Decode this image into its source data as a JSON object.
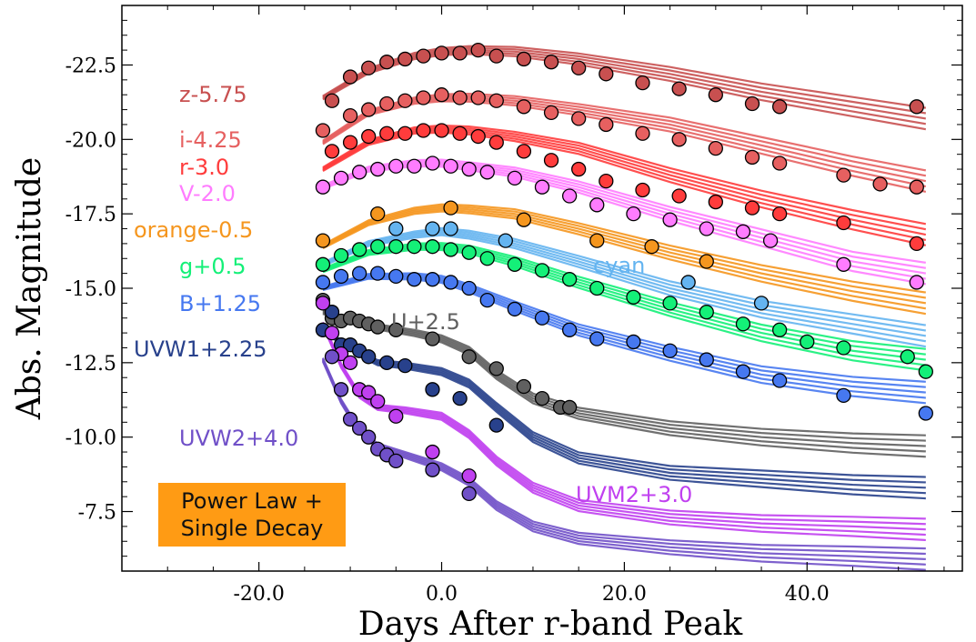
{
  "chart_data": {
    "type": "scatter",
    "xlabel": "Days After r-band Peak",
    "ylabel": "Abs. Magnitude",
    "xlim": [
      -35,
      57
    ],
    "ylim": [
      -5.5,
      -24.5
    ],
    "y_inverted": true,
    "x_ticks": [
      -20.0,
      0.0,
      20.0,
      40.0
    ],
    "x_tick_labels": [
      "-20.0",
      "0.0",
      "20.0",
      "40.0"
    ],
    "y_ticks": [
      -22.5,
      -20.0,
      -17.5,
      -15.0,
      -12.5,
      -10.0,
      -7.5
    ],
    "y_tick_labels": [
      "-22.5",
      "-20.0",
      "-17.5",
      "-15.0",
      "-12.5",
      "-10.0",
      "-7.5"
    ],
    "grid": false,
    "model_box": [
      "Power Law +",
      "Single Decay"
    ],
    "series": [
      {
        "name": "z-5.75",
        "color": "#c85050",
        "x": [
          -12,
          -10,
          -8,
          -6,
          -4,
          -2,
          0,
          2,
          4,
          6,
          9,
          12,
          15,
          18,
          22,
          26,
          30,
          34,
          37,
          52
        ],
        "y": [
          -21.3,
          -22.1,
          -22.4,
          -22.6,
          -22.7,
          -22.8,
          -22.9,
          -22.9,
          -23.0,
          -22.8,
          -22.7,
          -22.6,
          -22.4,
          -22.2,
          -21.9,
          -21.7,
          -21.5,
          -21.2,
          -21.1,
          -21.1
        ],
        "model_x": [
          -13,
          -8,
          -3,
          0,
          3,
          8,
          15,
          25,
          35,
          45,
          53
        ],
        "model_y": [
          -21.4,
          -22.3,
          -22.8,
          -22.95,
          -23.0,
          -22.95,
          -22.7,
          -22.2,
          -21.6,
          -21.1,
          -20.7
        ]
      },
      {
        "name": "i-4.25",
        "color": "#e66060",
        "x": [
          -13,
          -10,
          -8,
          -6,
          -4,
          -2,
          0,
          2,
          4,
          6,
          9,
          12,
          15,
          18,
          22,
          26,
          30,
          34,
          37,
          44,
          48,
          52
        ],
        "y": [
          -20.3,
          -20.8,
          -21.0,
          -21.2,
          -21.3,
          -21.4,
          -21.5,
          -21.4,
          -21.4,
          -21.3,
          -21.1,
          -20.9,
          -20.7,
          -20.5,
          -20.2,
          -20.0,
          -19.7,
          -19.4,
          -19.2,
          -18.8,
          -18.5,
          -18.4
        ],
        "model_x": [
          -13,
          -8,
          -3,
          0,
          3,
          8,
          15,
          25,
          35,
          45,
          53
        ],
        "model_y": [
          -19.9,
          -20.9,
          -21.3,
          -21.4,
          -21.4,
          -21.3,
          -21.0,
          -20.5,
          -19.8,
          -19.1,
          -18.6
        ]
      },
      {
        "name": "r-3.0",
        "color": "#ff3c3c",
        "x": [
          -12,
          -10,
          -8,
          -6,
          -4,
          -2,
          0,
          2,
          4,
          6,
          9,
          12,
          15,
          18,
          22,
          26,
          30,
          34,
          37,
          44,
          52
        ],
        "y": [
          -19.6,
          -19.9,
          -20.1,
          -20.2,
          -20.2,
          -20.3,
          -20.3,
          -20.2,
          -20.1,
          -19.9,
          -19.6,
          -19.3,
          -19.0,
          -18.6,
          -18.3,
          -18.1,
          -17.9,
          -17.7,
          -17.5,
          -17.2,
          -16.5
        ],
        "model_x": [
          -13,
          -8,
          -3,
          0,
          3,
          8,
          15,
          25,
          35,
          45,
          53
        ],
        "model_y": [
          -19.0,
          -19.9,
          -20.3,
          -20.35,
          -20.3,
          -20.1,
          -19.7,
          -18.8,
          -18.0,
          -17.3,
          -16.8
        ]
      },
      {
        "name": "V-2.0",
        "color": "#ff7cff",
        "x": [
          -13,
          -11,
          -9,
          -7,
          -5,
          -3,
          -1,
          1,
          3,
          5,
          8,
          11,
          14,
          17,
          21,
          25,
          29,
          33,
          36,
          44,
          52
        ],
        "y": [
          -18.4,
          -18.7,
          -18.9,
          -19.0,
          -19.1,
          -19.1,
          -19.2,
          -19.1,
          -19.0,
          -18.9,
          -18.7,
          -18.4,
          -18.1,
          -17.8,
          -17.5,
          -17.3,
          -17.0,
          -16.9,
          -16.6,
          -15.8,
          -15.2
        ],
        "model_x": [
          -13,
          -8,
          -3,
          0,
          3,
          8,
          15,
          25,
          35,
          45,
          53
        ],
        "model_y": [
          -18.4,
          -19.0,
          -19.2,
          -19.2,
          -19.1,
          -18.9,
          -18.4,
          -17.5,
          -16.7,
          -15.9,
          -15.5
        ]
      },
      {
        "name": "orange-0.5",
        "color": "#f5961e",
        "x": [
          -13,
          -7,
          1,
          9,
          17,
          23,
          29
        ],
        "y": [
          -16.6,
          -17.5,
          -17.7,
          -17.3,
          -16.6,
          -16.4,
          -15.9
        ],
        "model_x": [
          -13,
          -8,
          -3,
          0,
          3,
          8,
          15,
          25,
          35,
          45,
          53
        ],
        "model_y": [
          -16.4,
          -17.2,
          -17.6,
          -17.7,
          -17.65,
          -17.5,
          -17.0,
          -16.2,
          -15.5,
          -14.9,
          -14.5
        ]
      },
      {
        "name": "cyan",
        "color": "#64b4f0",
        "x": [
          -5,
          -1,
          1,
          7,
          27,
          35
        ],
        "y": [
          -17.0,
          -17.0,
          -17.0,
          -16.6,
          -15.2,
          -14.5
        ],
        "model_x": [
          -13,
          -8,
          -3,
          0,
          3,
          8,
          15,
          25,
          35,
          45,
          53
        ],
        "model_y": [
          -15.8,
          -16.5,
          -16.8,
          -16.9,
          -16.8,
          -16.5,
          -15.9,
          -15.0,
          -14.3,
          -13.8,
          -13.4
        ]
      },
      {
        "name": "g+0.5",
        "color": "#14f078",
        "x": [
          -13,
          -11,
          -9,
          -7,
          -5,
          -3,
          -1,
          1,
          3,
          5,
          8,
          11,
          14,
          17,
          21,
          25,
          29,
          33,
          37,
          40,
          44,
          51,
          53
        ],
        "y": [
          -15.8,
          -16.1,
          -16.3,
          -16.4,
          -16.4,
          -16.4,
          -16.4,
          -16.3,
          -16.2,
          -16.0,
          -15.8,
          -15.6,
          -15.3,
          -15.0,
          -14.7,
          -14.5,
          -14.2,
          -13.8,
          -13.6,
          -13.2,
          -13.0,
          -12.7,
          -12.2
        ],
        "model_x": [
          -13,
          -8,
          -3,
          0,
          3,
          8,
          15,
          25,
          35,
          45,
          53
        ],
        "model_y": [
          -15.6,
          -16.2,
          -16.4,
          -16.4,
          -16.3,
          -15.9,
          -15.2,
          -14.3,
          -13.5,
          -12.9,
          -12.6
        ]
      },
      {
        "name": "B+1.25",
        "color": "#4678f0",
        "x": [
          -13,
          -11,
          -9,
          -7,
          -5,
          -3,
          -1,
          1,
          3,
          5,
          8,
          11,
          14,
          17,
          21,
          25,
          29,
          33,
          37,
          44,
          53
        ],
        "y": [
          -15.2,
          -15.4,
          -15.5,
          -15.5,
          -15.4,
          -15.3,
          -15.3,
          -15.2,
          -15.0,
          -14.6,
          -14.3,
          -14.0,
          -13.6,
          -13.3,
          -13.2,
          -12.9,
          -12.6,
          -12.2,
          -11.9,
          -11.4,
          -10.8
        ],
        "model_x": [
          -13,
          -8,
          -3,
          0,
          3,
          8,
          15,
          25,
          35,
          45,
          53
        ],
        "model_y": [
          -15.0,
          -15.4,
          -15.4,
          -15.3,
          -15.0,
          -14.4,
          -13.6,
          -12.8,
          -12.1,
          -11.7,
          -11.5
        ]
      },
      {
        "name": "U+2.5",
        "color": "#606060",
        "x": [
          -13,
          -12,
          -11,
          -10,
          -9,
          -8,
          -7,
          -5,
          -1,
          3,
          6,
          9,
          11,
          13,
          14
        ],
        "y": [
          -14.6,
          -14.0,
          -13.9,
          -14.0,
          -13.9,
          -13.8,
          -13.7,
          -13.6,
          -13.3,
          -12.7,
          -12.3,
          -11.7,
          -11.3,
          -11.0,
          -11.0
        ],
        "model_x": [
          -13,
          -10,
          -7,
          -3,
          0,
          3,
          6,
          10,
          15,
          25,
          35,
          45,
          53
        ],
        "model_y": [
          -14.2,
          -13.9,
          -13.7,
          -13.5,
          -13.3,
          -12.9,
          -12.1,
          -11.3,
          -10.8,
          -10.3,
          -10.0,
          -9.8,
          -9.7
        ]
      },
      {
        "name": "UVW1+2.25",
        "color": "#28418c",
        "x": [
          -13,
          -12,
          -11,
          -10,
          -9,
          -8,
          -6,
          -4,
          -1,
          2,
          6
        ],
        "y": [
          -13.6,
          -14.2,
          -13.1,
          -13.1,
          -12.9,
          -12.7,
          -12.5,
          -12.4,
          -11.6,
          -11.3,
          -10.4
        ],
        "model_x": [
          -13,
          -11,
          -9,
          -7,
          -4,
          0,
          3,
          6,
          10,
          15,
          25,
          35,
          45,
          53
        ],
        "model_y": [
          -13.6,
          -13.2,
          -12.8,
          -12.5,
          -12.4,
          -12.2,
          -11.8,
          -11.0,
          -10.0,
          -9.3,
          -8.8,
          -8.6,
          -8.4,
          -8.3
        ]
      },
      {
        "name": "UVM2+3.0",
        "color": "#c040f0",
        "x": [
          -13,
          -12,
          -11,
          -10,
          -9,
          -8,
          -7,
          -5,
          -1,
          3
        ],
        "y": [
          -14.5,
          -13.5,
          -12.8,
          -12.5,
          -11.6,
          -11.5,
          -11.2,
          -10.7,
          -9.5,
          -8.7
        ],
        "model_x": [
          -13,
          -11,
          -9,
          -7,
          -4,
          0,
          3,
          6,
          10,
          15,
          25,
          35,
          45,
          53
        ],
        "model_y": [
          -13.8,
          -12.4,
          -11.4,
          -11.0,
          -10.9,
          -10.7,
          -10.1,
          -9.2,
          -8.3,
          -7.7,
          -7.3,
          -7.1,
          -7.0,
          -6.9
        ]
      },
      {
        "name": "UVW2+4.0",
        "color": "#7050c8",
        "x": [
          -12,
          -11,
          -10,
          -9,
          -8,
          -7,
          -6,
          -5,
          -1,
          3
        ],
        "y": [
          -12.7,
          -11.6,
          -10.6,
          -10.3,
          -10.0,
          -9.6,
          -9.4,
          -9.2,
          -8.9,
          -8.1
        ],
        "model_x": [
          -13,
          -11,
          -9,
          -7,
          -4,
          0,
          3,
          6,
          10,
          15,
          25,
          35,
          45,
          53
        ],
        "model_y": [
          -12.6,
          -11.2,
          -10.2,
          -9.7,
          -9.4,
          -9.0,
          -8.5,
          -7.7,
          -7.0,
          -6.6,
          -6.3,
          -6.1,
          -6.0,
          -5.9
        ]
      }
    ]
  }
}
